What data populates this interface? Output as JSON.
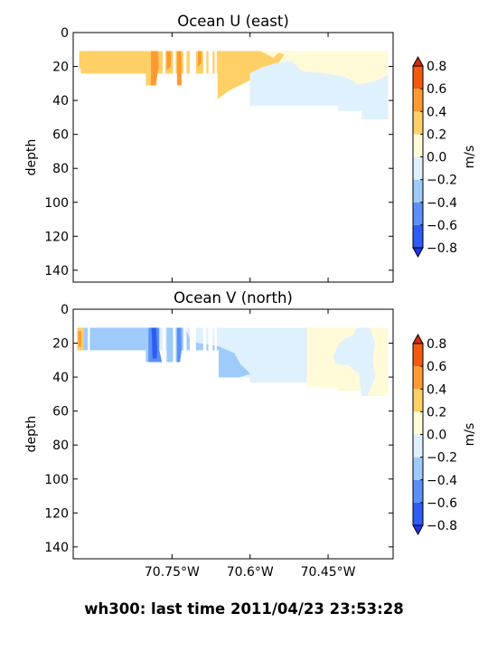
{
  "footer": "wh300: last time 2011/04/23 23:53:28",
  "chart_data": [
    {
      "type": "contour",
      "title": "Ocean U (east)",
      "xlabel": "",
      "ylabel": "depth",
      "xlim": [
        -70.94,
        -70.325
      ],
      "ylim": [
        147,
        0
      ],
      "x_ticks": [
        -70.75,
        -70.6,
        -70.45
      ],
      "x_tick_labels": [
        "",
        "",
        ""
      ],
      "y_ticks": [
        0,
        20,
        40,
        60,
        80,
        100,
        120,
        140
      ],
      "colorbar": {
        "label": "m/s",
        "levels": [
          -0.8,
          -0.6,
          -0.4,
          -0.2,
          0.0,
          0.2,
          0.4,
          0.6,
          0.8
        ],
        "colors": [
          "#2e5cf5",
          "#5c8ff8",
          "#9ecbfa",
          "#dff1fc",
          "#fffad8",
          "#ffd066",
          "#ff9a33",
          "#f25b0f"
        ],
        "extend_low_color": "#1f34e8",
        "extend_high_color": "#d42a0a"
      },
      "regions": [
        {
          "level": 0.0,
          "color": "#fffad8",
          "polygon": [
            [
              -70.7,
              11
            ],
            [
              -70.335,
              11
            ],
            [
              -70.335,
              51
            ],
            [
              -70.385,
              51
            ],
            [
              -70.385,
              46
            ],
            [
              -70.43,
              46
            ],
            [
              -70.43,
              43
            ],
            [
              -70.6,
              43
            ],
            [
              -70.6,
              24
            ],
            [
              -70.7,
              24
            ]
          ]
        },
        {
          "level": 0.2,
          "color": "#ffd066",
          "polygon": [
            [
              -70.928,
              11
            ],
            [
              -70.58,
              11
            ],
            [
              -70.555,
              15
            ],
            [
              -70.545,
              12
            ],
            [
              -70.535,
              13
            ],
            [
              -70.55,
              20
            ],
            [
              -70.57,
              23
            ],
            [
              -70.6,
              28
            ],
            [
              -70.64,
              34
            ],
            [
              -70.662,
              39
            ],
            [
              -70.662,
              24
            ],
            [
              -70.905,
              24
            ],
            [
              -70.905,
              21
            ],
            [
              -70.928,
              21
            ]
          ]
        },
        {
          "level": 0.2,
          "color": "#ffd066",
          "polygon": [
            [
              -70.925,
              11
            ],
            [
              -70.78,
              11
            ],
            [
              -70.78,
              31
            ],
            [
              -70.8,
              31
            ],
            [
              -70.8,
              24
            ],
            [
              -70.925,
              24
            ]
          ]
        },
        {
          "level": -0.2,
          "color": "#dff1fc",
          "polygon": [
            [
              -70.6,
              24
            ],
            [
              -70.58,
              21
            ],
            [
              -70.55,
              18
            ],
            [
              -70.52,
              17
            ],
            [
              -70.51,
              20
            ],
            [
              -70.5,
              23
            ],
            [
              -70.46,
              24
            ],
            [
              -70.42,
              26
            ],
            [
              -70.4,
              29
            ],
            [
              -70.395,
              31
            ],
            [
              -70.36,
              29
            ],
            [
              -70.335,
              25
            ],
            [
              -70.335,
              51
            ],
            [
              -70.385,
              51
            ],
            [
              -70.385,
              46
            ],
            [
              -70.43,
              46
            ],
            [
              -70.43,
              43
            ],
            [
              -70.6,
              43
            ]
          ]
        },
        {
          "level": 0.4,
          "color": "#ff9a33",
          "polygon": [
            [
              -70.79,
              11
            ],
            [
              -70.777,
              11
            ],
            [
              -70.776,
              20
            ],
            [
              -70.782,
              31
            ],
            [
              -70.79,
              31
            ]
          ]
        },
        {
          "level": 0.4,
          "color": "#ff9a33",
          "polygon": [
            [
              -70.76,
              11
            ],
            [
              -70.752,
              11
            ],
            [
              -70.753,
              20
            ],
            [
              -70.76,
              22
            ]
          ]
        },
        {
          "level": 0.4,
          "color": "#ff9a33",
          "polygon": [
            [
              -70.74,
              11
            ],
            [
              -70.733,
              11
            ],
            [
              -70.732,
              31
            ],
            [
              -70.74,
              31
            ]
          ]
        },
        {
          "level": 0.4,
          "color": "#ff9a33",
          "polygon": [
            [
              -70.7,
              11
            ],
            [
              -70.694,
              11
            ],
            [
              -70.694,
              18
            ],
            [
              -70.7,
              20
            ]
          ]
        }
      ],
      "gaps_lon": [
        [
          -70.768,
          -70.763
        ],
        [
          -70.748,
          -70.743
        ],
        [
          -70.728,
          -70.722
        ],
        [
          -70.716,
          -70.704
        ],
        [
          -70.69,
          -70.684
        ],
        [
          -70.68,
          -70.672
        ],
        [
          -70.668,
          -70.664
        ]
      ]
    },
    {
      "type": "contour",
      "title": "Ocean V (north)",
      "xlabel": "",
      "ylabel": "depth",
      "xlim": [
        -70.94,
        -70.325
      ],
      "ylim": [
        147,
        0
      ],
      "x_ticks": [
        -70.75,
        -70.6,
        -70.45
      ],
      "x_tick_labels": [
        "70.75°W",
        "70.6°W",
        "70.45°W"
      ],
      "y_ticks": [
        0,
        20,
        40,
        60,
        80,
        100,
        120,
        140
      ],
      "colorbar": {
        "label": "m/s",
        "levels": [
          -0.8,
          -0.6,
          -0.4,
          -0.2,
          0.0,
          0.2,
          0.4,
          0.6,
          0.8
        ],
        "colors": [
          "#2e5cf5",
          "#5c8ff8",
          "#9ecbfa",
          "#dff1fc",
          "#fffad8",
          "#ffd066",
          "#ff9a33",
          "#f25b0f"
        ],
        "extend_low_color": "#1f34e8",
        "extend_high_color": "#d42a0a"
      },
      "regions": [
        {
          "level": -0.2,
          "color": "#dff1fc",
          "polygon": [
            [
              -70.928,
              11
            ],
            [
              -70.49,
              11
            ],
            [
              -70.49,
              43
            ],
            [
              -70.6,
              43
            ],
            [
              -70.6,
              40
            ],
            [
              -70.66,
              40
            ],
            [
              -70.66,
              24
            ],
            [
              -70.928,
              24
            ]
          ]
        },
        {
          "level": 0.0,
          "color": "#fffad8",
          "polygon": [
            [
              -70.49,
              11
            ],
            [
              -70.335,
              11
            ],
            [
              -70.335,
              51
            ],
            [
              -70.385,
              51
            ],
            [
              -70.385,
              48
            ],
            [
              -70.43,
              48
            ],
            [
              -70.43,
              46
            ],
            [
              -70.49,
              46
            ]
          ]
        },
        {
          "level": -0.2,
          "color": "#dff1fc",
          "polygon": [
            [
              -70.42,
              18
            ],
            [
              -70.4,
              15
            ],
            [
              -70.395,
              11
            ],
            [
              -70.37,
              11
            ],
            [
              -70.36,
              20
            ],
            [
              -70.365,
              31
            ],
            [
              -70.36,
              40
            ],
            [
              -70.375,
              51
            ],
            [
              -70.385,
              51
            ],
            [
              -70.39,
              38
            ],
            [
              -70.41,
              33
            ],
            [
              -70.435,
              32
            ],
            [
              -70.44,
              28
            ],
            [
              -70.43,
              21
            ]
          ]
        },
        {
          "level": -0.4,
          "color": "#9ecbfa",
          "polygon": [
            [
              -70.93,
              11
            ],
            [
              -70.79,
              11
            ],
            [
              -70.79,
              31
            ],
            [
              -70.8,
              31
            ],
            [
              -70.8,
              24
            ],
            [
              -70.93,
              24
            ]
          ]
        },
        {
          "level": -0.4,
          "color": "#9ecbfa",
          "polygon": [
            [
              -70.76,
              11
            ],
            [
              -70.725,
              11
            ],
            [
              -70.715,
              18
            ],
            [
              -70.7,
              20
            ],
            [
              -70.66,
              22
            ],
            [
              -70.63,
              26
            ],
            [
              -70.62,
              32
            ],
            [
              -70.6,
              38
            ],
            [
              -70.62,
              40
            ],
            [
              -70.66,
              40
            ],
            [
              -70.66,
              24
            ],
            [
              -70.74,
              24
            ],
            [
              -70.74,
              31
            ],
            [
              -70.76,
              31
            ]
          ]
        },
        {
          "level": -0.6,
          "color": "#5c8ff8",
          "polygon": [
            [
              -70.795,
              11
            ],
            [
              -70.775,
              11
            ],
            [
              -70.775,
              24
            ],
            [
              -70.77,
              31
            ],
            [
              -70.795,
              31
            ]
          ]
        },
        {
          "level": -0.6,
          "color": "#5c8ff8",
          "polygon": [
            [
              -70.74,
              11
            ],
            [
              -70.733,
              11
            ],
            [
              -70.732,
              24
            ],
            [
              -70.735,
              31
            ],
            [
              -70.74,
              31
            ]
          ]
        },
        {
          "level": -0.8,
          "color": "#2e5cf5",
          "polygon": [
            [
              -70.789,
              11
            ],
            [
              -70.781,
              11
            ],
            [
              -70.779,
              24
            ],
            [
              -70.78,
              29
            ],
            [
              -70.787,
              29
            ]
          ]
        },
        {
          "level": 0.2,
          "color": "#ffd066",
          "polygon": [
            [
              -70.932,
              11
            ],
            [
              -70.92,
              11
            ],
            [
              -70.92,
              24
            ],
            [
              -70.932,
              24
            ]
          ]
        },
        {
          "level": 0.4,
          "color": "#ff9a33",
          "polygon": [
            [
              -70.93,
              13
            ],
            [
              -70.925,
              13
            ],
            [
              -70.925,
              22
            ],
            [
              -70.93,
              22
            ]
          ]
        }
      ],
      "gaps_lon": [
        [
          -70.768,
          -70.763
        ],
        [
          -70.748,
          -70.743
        ],
        [
          -70.728,
          -70.722
        ],
        [
          -70.716,
          -70.704
        ],
        [
          -70.69,
          -70.684
        ],
        [
          -70.68,
          -70.672
        ],
        [
          -70.668,
          -70.664
        ],
        [
          -70.912,
          -70.908
        ]
      ]
    }
  ]
}
